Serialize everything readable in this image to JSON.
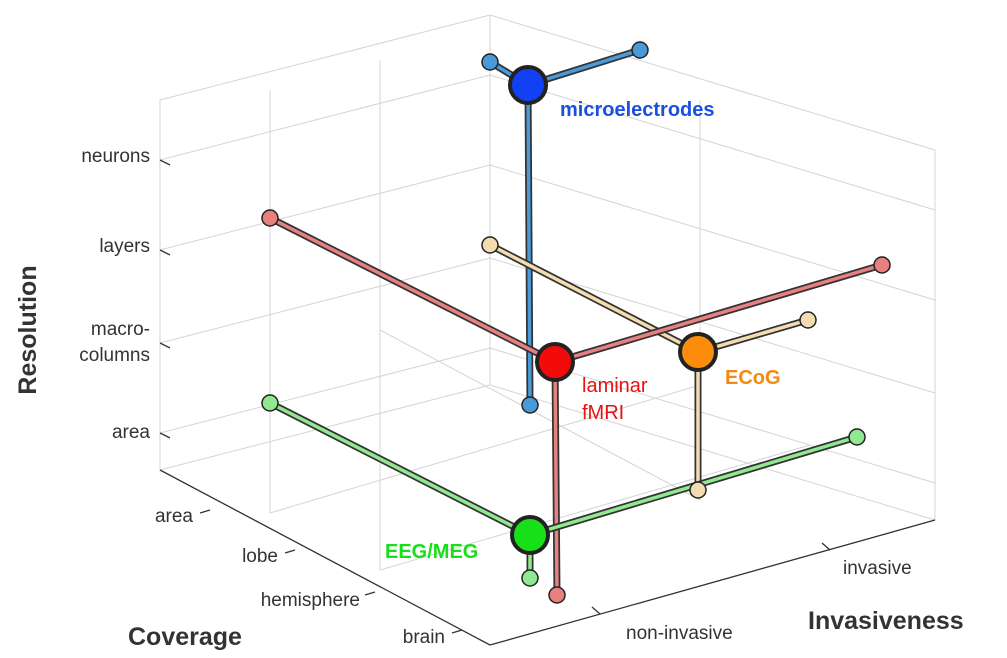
{
  "axes": {
    "resolution": {
      "title": "Resolution",
      "ticks": [
        [
          "neurons"
        ],
        [
          "layers"
        ],
        [
          "macro-",
          "columns"
        ],
        [
          "area"
        ]
      ]
    },
    "coverage": {
      "title": "Coverage",
      "ticks": [
        "area",
        "lobe",
        "hemisphere",
        "brain"
      ]
    },
    "invasiveness": {
      "title": "Invasiveness",
      "ticks": [
        "non-invasive",
        "invasive"
      ]
    }
  },
  "methods": [
    {
      "label": [
        "microelectrodes"
      ]
    },
    {
      "label": [
        "laminar",
        "fMRI"
      ]
    },
    {
      "label": [
        "ECoG"
      ]
    },
    {
      "label": [
        "EEG/MEG"
      ]
    }
  ]
}
